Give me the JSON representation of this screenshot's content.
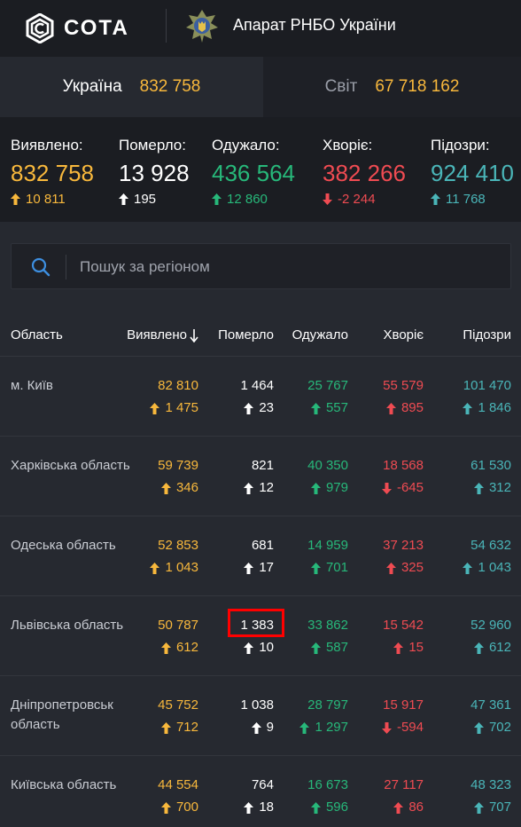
{
  "header": {
    "brand": "СОТА",
    "org_title": "Апарат РНБО України"
  },
  "tabs": [
    {
      "label": "Україна",
      "value": "832 758"
    },
    {
      "label": "Світ",
      "value": "67 718 162"
    }
  ],
  "summary": [
    {
      "label": "Виявлено:",
      "value": "832 758",
      "delta": "10 811",
      "direction": "up",
      "color": "#f8b83c"
    },
    {
      "label": "Померло:",
      "value": "13 928",
      "delta": "195",
      "direction": "up",
      "color": "#ffffff"
    },
    {
      "label": "Одужало:",
      "value": "436 564",
      "delta": "12 860",
      "direction": "up",
      "color": "#27b87a"
    },
    {
      "label": "Хворіє:",
      "value": "382 266",
      "delta": "-2 244",
      "direction": "down",
      "color": "#ef4b52"
    },
    {
      "label": "Підозри:",
      "value": "924 410",
      "delta": "11 768",
      "direction": "up",
      "color": "#4ab5b8"
    }
  ],
  "search": {
    "placeholder": "Пошук за регіоном",
    "value": ""
  },
  "table": {
    "headers": {
      "region": "Область",
      "detected": "Виявлено",
      "dead": "Померло",
      "recovered": "Одужало",
      "sick": "Хворіє",
      "suspect": "Підозри"
    },
    "sort_icon": "arrow-down-icon",
    "rows": [
      {
        "name": "м. Київ",
        "detected": "82 810",
        "detected_d": "1 475",
        "dead": "1 464",
        "dead_d": "23",
        "recovered": "25 767",
        "recovered_d": "557",
        "sick": "55 579",
        "sick_d": "895",
        "sick_dir": "up",
        "suspect": "101 470",
        "suspect_d": "1 846"
      },
      {
        "name": "Харківська область",
        "detected": "59 739",
        "detected_d": "346",
        "dead": "821",
        "dead_d": "12",
        "recovered": "40 350",
        "recovered_d": "979",
        "sick": "18 568",
        "sick_d": "-645",
        "sick_dir": "down",
        "suspect": "61 530",
        "suspect_d": "312"
      },
      {
        "name": "Одеська область",
        "detected": "52 853",
        "detected_d": "1 043",
        "dead": "681",
        "dead_d": "17",
        "recovered": "14 959",
        "recovered_d": "701",
        "sick": "37 213",
        "sick_d": "325",
        "sick_dir": "up",
        "suspect": "54 632",
        "suspect_d": "1 043"
      },
      {
        "name": "Львівська область",
        "detected": "50 787",
        "detected_d": "612",
        "dead": "1 383",
        "dead_d": "10",
        "recovered": "33 862",
        "recovered_d": "587",
        "sick": "15 542",
        "sick_d": "15",
        "sick_dir": "up",
        "suspect": "52 960",
        "suspect_d": "612"
      },
      {
        "name": "Дніпропетровськ область",
        "detected": "45 752",
        "detected_d": "712",
        "dead": "1 038",
        "dead_d": "9",
        "recovered": "28 797",
        "recovered_d": "1 297",
        "sick": "15 917",
        "sick_d": "-594",
        "sick_dir": "down",
        "suspect": "47 361",
        "suspect_d": "702"
      },
      {
        "name": "Київська область",
        "detected": "44 554",
        "detected_d": "700",
        "dead": "764",
        "dead_d": "18",
        "recovered": "16 673",
        "recovered_d": "596",
        "sick": "27 117",
        "sick_d": "86",
        "sick_dir": "up",
        "suspect": "48 323",
        "suspect_d": "707"
      }
    ]
  },
  "colors": {
    "detected": "#f8b83c",
    "dead": "#ffffff",
    "recovered": "#27b87a",
    "sick": "#ef4b52",
    "suspect": "#4ab5b8",
    "highlight": "#ff0000"
  }
}
